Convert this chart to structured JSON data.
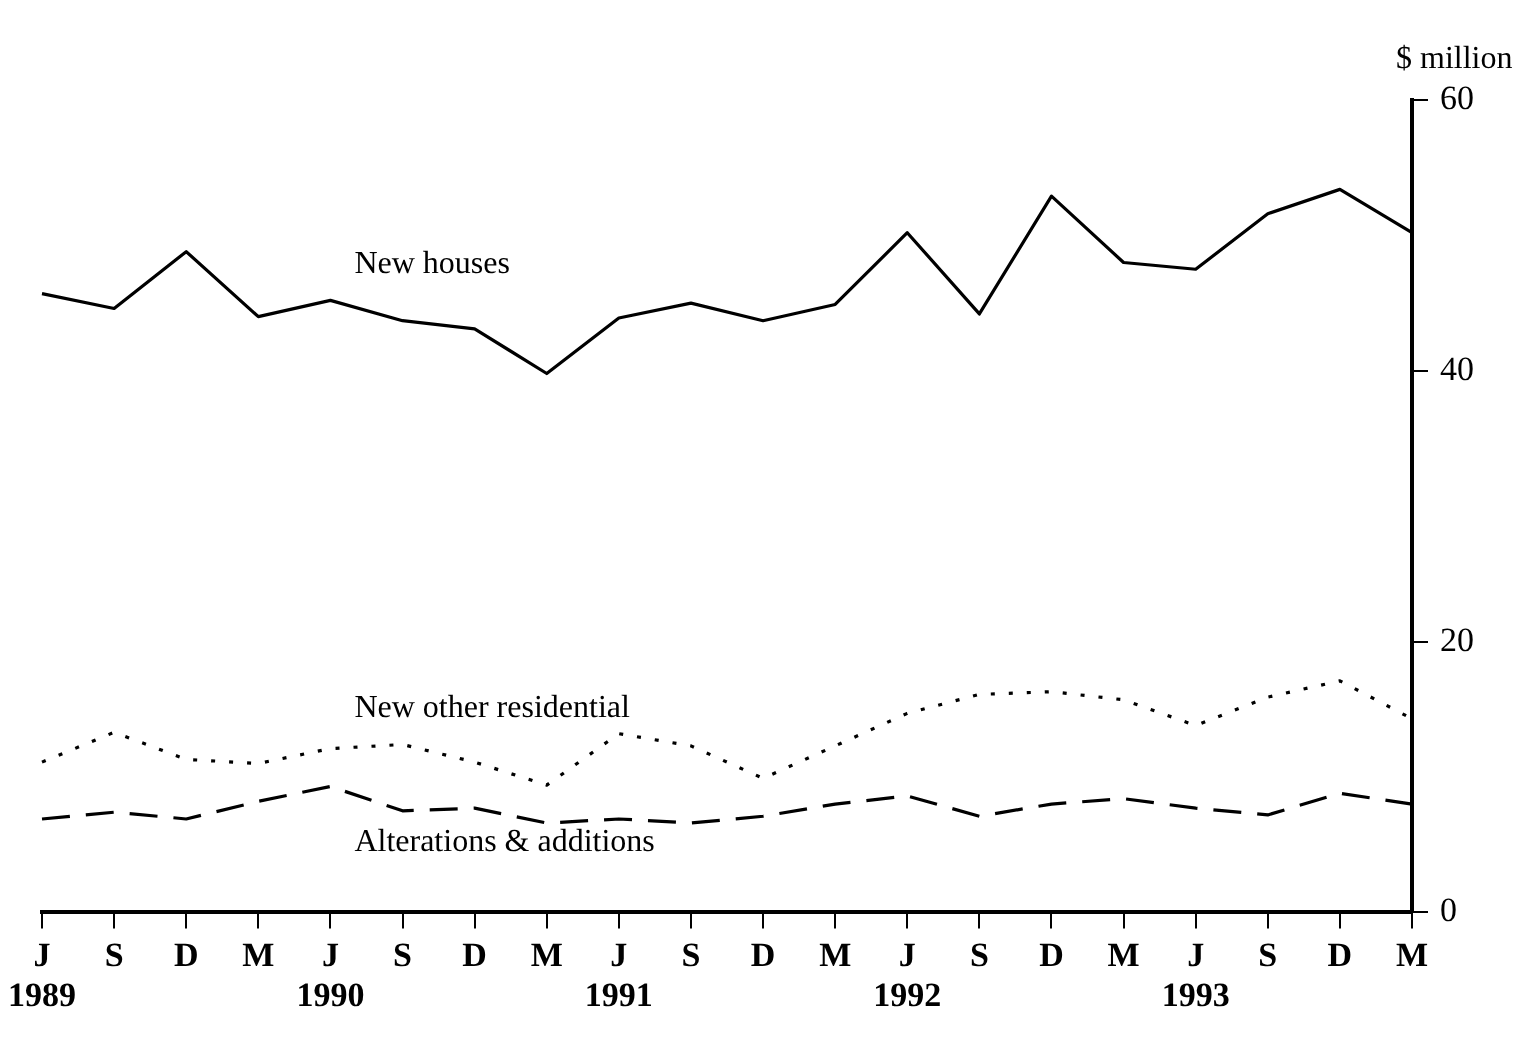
{
  "chart_data": {
    "type": "line",
    "ylabel": "$ million",
    "categories": [
      "J\n1989",
      "S",
      "D",
      "M",
      "J\n1990",
      "S",
      "D",
      "M",
      "J\n1991",
      "S",
      "D",
      "M",
      "J\n1992",
      "S",
      "D",
      "M",
      "J\n1993",
      "S",
      "D",
      "M"
    ],
    "series": [
      {
        "name": "New houses",
        "color": "#000000",
        "line_style": "solid",
        "values": [
          45.7,
          44.6,
          48.8,
          44.0,
          45.2,
          43.7,
          43.1,
          39.8,
          43.9,
          45.0,
          43.7,
          44.9,
          50.2,
          44.2,
          52.9,
          48.0,
          47.5,
          51.6,
          53.4,
          50.2
        ]
      },
      {
        "name": "New other residential",
        "color": "#000000",
        "line_style": "dotted",
        "values": [
          11.1,
          13.3,
          11.3,
          11.0,
          12.1,
          12.4,
          11.1,
          9.4,
          13.2,
          12.3,
          9.9,
          12.3,
          14.7,
          16.1,
          16.3,
          15.7,
          13.8,
          15.9,
          17.1,
          14.3
        ]
      },
      {
        "name": "Alterations & additions",
        "color": "#000000",
        "line_style": "dashed",
        "values": [
          6.9,
          7.4,
          6.9,
          8.2,
          9.3,
          7.5,
          7.7,
          6.6,
          6.9,
          6.6,
          7.1,
          8.0,
          8.6,
          7.1,
          8.0,
          8.4,
          7.7,
          7.2,
          8.8,
          8.0
        ]
      }
    ],
    "ylim": [
      0,
      60
    ],
    "yticks": [
      0,
      20,
      40,
      60
    ],
    "grid": false,
    "legend": false,
    "marker": "none"
  }
}
